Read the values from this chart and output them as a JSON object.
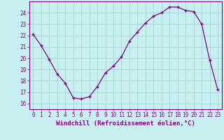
{
  "hours": [
    0,
    1,
    2,
    3,
    4,
    5,
    6,
    7,
    8,
    9,
    10,
    11,
    12,
    13,
    14,
    15,
    16,
    17,
    18,
    19,
    20,
    21,
    22,
    23
  ],
  "windchill": [
    22.1,
    21.1,
    19.9,
    18.6,
    17.8,
    16.5,
    16.4,
    16.6,
    17.5,
    18.7,
    19.3,
    20.1,
    21.5,
    22.3,
    23.1,
    23.7,
    24.0,
    24.5,
    24.5,
    24.2,
    24.1,
    23.0,
    19.8,
    17.2
  ],
  "line_color": "#800080",
  "marker": "+",
  "bg_color": "#c8f0f0",
  "grid_color": "#a8d8d8",
  "xlabel": "Windchill (Refroidissement éolien,°C)",
  "ylim": [
    15.5,
    25.0
  ],
  "xlim": [
    -0.5,
    23.5
  ],
  "yticks": [
    16,
    17,
    18,
    19,
    20,
    21,
    22,
    23,
    24
  ],
  "xticks": [
    0,
    1,
    2,
    3,
    4,
    5,
    6,
    7,
    8,
    9,
    10,
    11,
    12,
    13,
    14,
    15,
    16,
    17,
    18,
    19,
    20,
    21,
    22,
    23
  ],
  "tick_color": "#800080",
  "label_color": "#800080",
  "spine_color": "#800080",
  "font_size_ticks": 5.5,
  "font_size_xlabel": 6.5
}
